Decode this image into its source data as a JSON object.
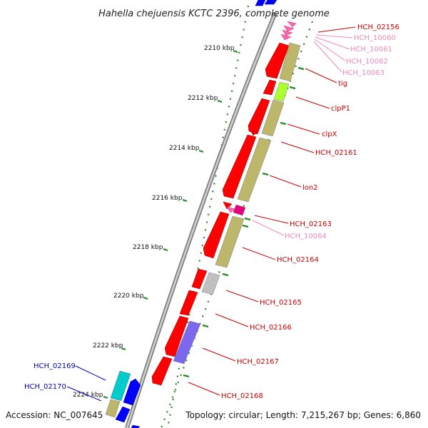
{
  "title": "Hahella chejuensis KCTC 2396, complete genome",
  "accession": "Accession: NC_007645",
  "topology": "Topology: circular; Length: 7,215,267 bp; Genes: 6,860",
  "ticks": [
    "2210 kbp",
    "2212 kbp",
    "2214 kbp",
    "2216 kbp",
    "2218 kbp",
    "2220 kbp",
    "2222 kbp",
    "2224 kbp"
  ],
  "colors": {
    "cds": "#ff0000",
    "trna": "#ff66aa",
    "cog_khaki": "#bdb76b",
    "cog_lime": "#adff2f",
    "cog_magenta": "#e6007e",
    "cog_grey": "#c0c0c0",
    "cog_purple": "#7b68ee",
    "cog_cyan": "#00cccc",
    "other_blue": "#0000ff",
    "gc_skew": "#228b22",
    "label_blue": "#0000aa"
  },
  "labels": [
    {
      "text": "HCH_02156",
      "color": "#cc0000"
    },
    {
      "text": "HCH_10060",
      "color": "#ee88bb"
    },
    {
      "text": "HCH_10061",
      "color": "#ee88bb"
    },
    {
      "text": "HCH_10062",
      "color": "#ee88bb"
    },
    {
      "text": "HCH_10063",
      "color": "#ee88bb"
    },
    {
      "text": "tig",
      "color": "#cc0000"
    },
    {
      "text": "clpP1",
      "color": "#cc0000"
    },
    {
      "text": "clpX",
      "color": "#cc0000"
    },
    {
      "text": "HCH_02161",
      "color": "#cc0000"
    },
    {
      "text": "lon2",
      "color": "#cc0000"
    },
    {
      "text": "HCH_02163",
      "color": "#cc0000"
    },
    {
      "text": "HCH_10064",
      "color": "#ee88bb"
    },
    {
      "text": "HCH_02164",
      "color": "#cc0000"
    },
    {
      "text": "HCH_02165",
      "color": "#cc0000"
    },
    {
      "text": "HCH_02166",
      "color": "#cc0000"
    },
    {
      "text": "HCH_02167",
      "color": "#cc0000"
    },
    {
      "text": "HCH_02168",
      "color": "#cc0000"
    },
    {
      "text": "HCH_02169",
      "color": "#0000aa"
    },
    {
      "text": "HCH_02170",
      "color": "#0000aa"
    }
  ]
}
